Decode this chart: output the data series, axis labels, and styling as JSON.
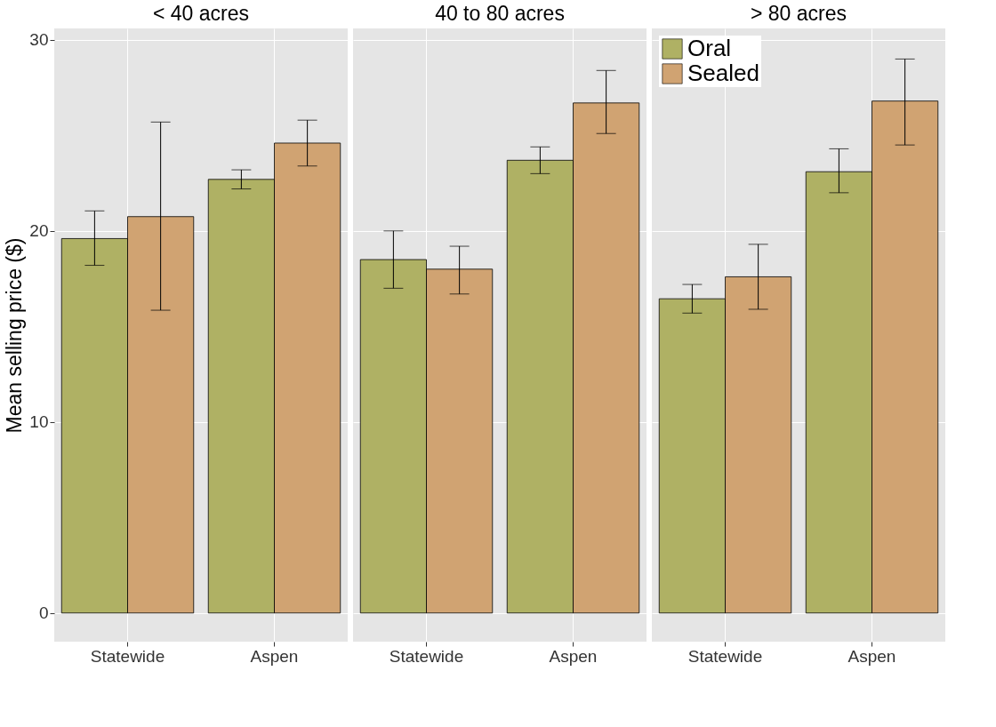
{
  "chart_data": [
    {
      "type": "bar",
      "title": "< 40 acres",
      "ylabel": "Mean selling price ($)",
      "categories": [
        "Statewide",
        "Aspen"
      ],
      "ylim": [
        -1.5,
        30.6
      ],
      "yticks": [
        0,
        10,
        20,
        30
      ],
      "grid": true,
      "series": [
        {
          "color": "#afb164",
          "values": [
            19.6,
            22.7
          ],
          "errors": [
            [
              18.2,
              21.05
            ],
            [
              22.2,
              23.2
            ]
          ]
        },
        {
          "color": "#d0a372",
          "values": [
            20.75,
            24.6
          ],
          "errors": [
            [
              15.85,
              25.7
            ],
            [
              23.4,
              25.8
            ]
          ]
        }
      ]
    },
    {
      "type": "bar",
      "title": "40 to 80 acres",
      "categories": [
        "Statewide",
        "Aspen"
      ],
      "ylim": [
        -1.5,
        30.6
      ],
      "yticks": [
        0,
        10,
        20,
        30
      ],
      "grid": true,
      "tick_labels": "x",
      "series": [
        {
          "color": "#afb164",
          "values": [
            18.5,
            23.7
          ],
          "errors": [
            [
              17.0,
              20.0
            ],
            [
              23.0,
              24.4
            ]
          ]
        },
        {
          "color": "#d0a372",
          "values": [
            18.0,
            26.7
          ],
          "errors": [
            [
              16.7,
              19.2
            ],
            [
              25.1,
              28.4
            ]
          ]
        }
      ]
    },
    {
      "type": "bar",
      "title": "> 80 acres",
      "categories": [
        "Statewide",
        "Aspen"
      ],
      "ylim": [
        -1.5,
        30.6
      ],
      "yticks": [
        0,
        10,
        20,
        30
      ],
      "grid": true,
      "tick_labels": "x",
      "legend": "top left",
      "series": [
        {
          "name": "Oral",
          "color": "#afb164",
          "values": [
            16.45,
            23.1
          ],
          "errors": [
            [
              15.7,
              17.2
            ],
            [
              22.0,
              24.3
            ]
          ]
        },
        {
          "name": "Sealed",
          "color": "#d0a372",
          "values": [
            17.6,
            26.8
          ],
          "errors": [
            [
              15.9,
              19.3
            ],
            [
              24.5,
              29.0
            ]
          ]
        }
      ]
    }
  ]
}
